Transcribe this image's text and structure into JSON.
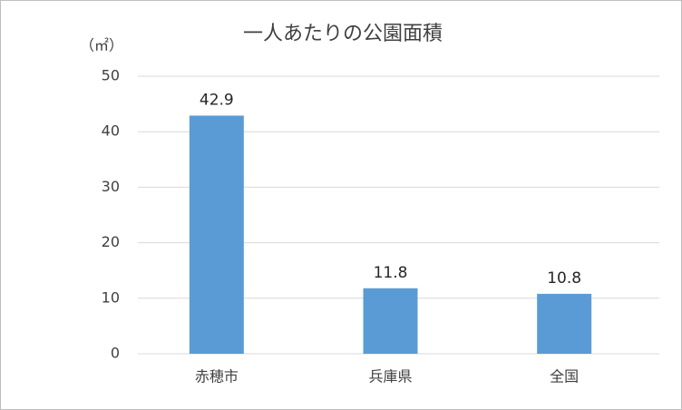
{
  "chart_data": {
    "type": "bar",
    "title": "一人あたりの公園面積",
    "y_label": "（㎡）",
    "categories": [
      "赤穂市",
      "兵庫県",
      "全国"
    ],
    "values": [
      42.9,
      11.8,
      10.8
    ],
    "color": "#5b9bd5",
    "ylim": [
      0,
      50
    ],
    "yticks": [
      0,
      10,
      20,
      30,
      40,
      50
    ],
    "grid": true
  }
}
